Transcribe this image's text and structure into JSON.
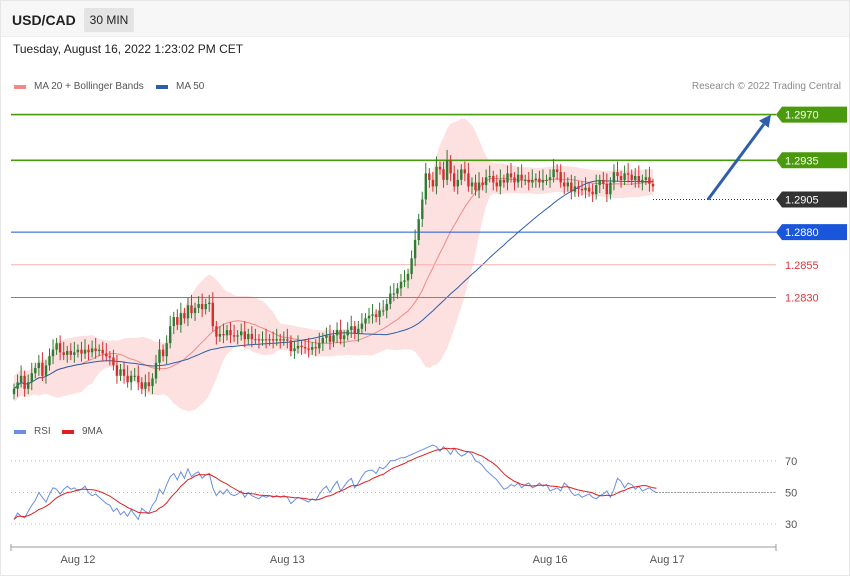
{
  "header": {
    "symbol": "USD/CAD",
    "timeframe": "30 MIN"
  },
  "datetime": "Tuesday, August 16, 2022 1:23:02 PM CET",
  "legend": {
    "ma20_bb": "MA 20 + Bollinger Bands",
    "ma50": "MA 50",
    "rsi": "RSI",
    "rsi_ma": "9MA",
    "credit": "Research © 2022 Trading Central"
  },
  "colors": {
    "resistance": "#4a9a0e",
    "pivot": "#1a56db",
    "support": "#e0393e",
    "current": "#333333",
    "bollinger_fill": "#fde0e0",
    "ma20": "#f08a8a",
    "ma50": "#2f5ea8",
    "candle_up": "#2e7d32",
    "candle_down": "#d32f2f",
    "rsi": "#6a8ee0",
    "rsi_ma": "#e02020",
    "arrow": "#2f5ea8"
  },
  "levels": [
    {
      "label": "1.2970",
      "value": 1.297,
      "kind": "resistance"
    },
    {
      "label": "1.2935",
      "value": 1.2935,
      "kind": "resistance"
    },
    {
      "label": "1.2905",
      "value": 1.2905,
      "kind": "current"
    },
    {
      "label": "1.2880",
      "value": 1.288,
      "kind": "pivot"
    },
    {
      "label": "1.2855",
      "value": 1.2855,
      "kind": "support"
    },
    {
      "label": "1.2830",
      "value": 1.283,
      "kind": "support"
    }
  ],
  "chart_data": [
    {
      "type": "candlestick",
      "title": "USD/CAD 30 MIN",
      "y_range": [
        1.274,
        1.2985
      ],
      "x_labels": [
        {
          "label": "Aug 12",
          "index": 18
        },
        {
          "label": "Aug 13",
          "index": 77
        },
        {
          "label": "Aug 16",
          "index": 151
        },
        {
          "label": "Aug 17",
          "index": 184
        }
      ],
      "closes": [
        1.276,
        1.2765,
        1.277,
        1.276,
        1.2765,
        1.2772,
        1.2776,
        1.278,
        1.277,
        1.2778,
        1.2785,
        1.279,
        1.2795,
        1.2788,
        1.2786,
        1.2789,
        1.2786,
        1.2788,
        1.279,
        1.2787,
        1.279,
        1.2788,
        1.2791,
        1.2789,
        1.279,
        1.2787,
        1.2785,
        1.2784,
        1.2778,
        1.277,
        1.2775,
        1.277,
        1.2765,
        1.277,
        1.277,
        1.2765,
        1.276,
        1.2765,
        1.2762,
        1.2768,
        1.278,
        1.279,
        1.2785,
        1.2795,
        1.2808,
        1.2815,
        1.2809,
        1.2818,
        1.2814,
        1.2824,
        1.2818,
        1.2822,
        1.2825,
        1.2821,
        1.2825,
        1.2826,
        1.2808,
        1.28,
        1.2802,
        1.2801,
        1.2805,
        1.2801,
        1.28,
        1.2801,
        1.2804,
        1.2798,
        1.2802,
        1.2798,
        1.2798,
        1.2797,
        1.2798,
        1.2797,
        1.2798,
        1.2797,
        1.2798,
        1.2797,
        1.2798,
        1.2797,
        1.2789,
        1.2791,
        1.2793,
        1.2792,
        1.2791,
        1.279,
        1.2792,
        1.2791,
        1.2795,
        1.2799,
        1.2801,
        1.2796,
        1.2801,
        1.2805,
        1.2798,
        1.2801,
        1.2805,
        1.2808,
        1.2802,
        1.2806,
        1.281,
        1.2814,
        1.2816,
        1.2817,
        1.2815,
        1.282,
        1.282,
        1.2825,
        1.2833,
        1.2833,
        1.2837,
        1.2842,
        1.2843,
        1.2848,
        1.286,
        1.2874,
        1.289,
        1.2905,
        1.2925,
        1.292,
        1.2915,
        1.293,
        1.2928,
        1.292,
        1.2935,
        1.2925,
        1.2915,
        1.292,
        1.2928,
        1.2925,
        1.2915,
        1.2918,
        1.2912,
        1.2918,
        1.2916,
        1.2922,
        1.2923,
        1.2918,
        1.2915,
        1.292,
        1.2918,
        1.2925,
        1.2922,
        1.2918,
        1.2924,
        1.292,
        1.292,
        1.2918,
        1.292,
        1.2921,
        1.2918,
        1.292,
        1.292,
        1.2922,
        1.2928,
        1.2926,
        1.2918,
        1.2915,
        1.2918,
        1.2911,
        1.2915,
        1.2913,
        1.2912,
        1.2914,
        1.2911,
        1.2909,
        1.2916,
        1.292,
        1.2917,
        1.2909,
        1.2918,
        1.2926,
        1.2923,
        1.292,
        1.2925,
        1.2924,
        1.292,
        1.2923,
        1.2918,
        1.292,
        1.2922,
        1.2917,
        1.2915
      ],
      "series": [
        {
          "name": "MA 20 + Bollinger Bands"
        },
        {
          "name": "MA 50"
        }
      ],
      "forecast_arrow": {
        "from": 1.2905,
        "to": 1.297
      }
    },
    {
      "type": "line",
      "title": "RSI",
      "y_range": [
        20,
        80
      ],
      "y_ticks": [
        70,
        50,
        30
      ],
      "series": [
        {
          "name": "RSI",
          "values": [
            33,
            37,
            35,
            34,
            38,
            42,
            45,
            50,
            47,
            44,
            49,
            53,
            52,
            49,
            52,
            54,
            52,
            53,
            51,
            52,
            54,
            50,
            48,
            49,
            47,
            45,
            43,
            42,
            38,
            40,
            36,
            38,
            35,
            39,
            36,
            33,
            40,
            38,
            37,
            42,
            45,
            52,
            49,
            55,
            60,
            62,
            58,
            63,
            59,
            65,
            60,
            62,
            63,
            59,
            61,
            62,
            53,
            48,
            51,
            49,
            52,
            49,
            48,
            49,
            51,
            47,
            50,
            48,
            47,
            46,
            48,
            47,
            48,
            47,
            48,
            47,
            48,
            47,
            43,
            45,
            47,
            46,
            45,
            44,
            46,
            45,
            49,
            52,
            54,
            50,
            54,
            57,
            51,
            54,
            57,
            59,
            53,
            56,
            60,
            63,
            64,
            64,
            62,
            66,
            65,
            67,
            70,
            70,
            71,
            72,
            72,
            73,
            74,
            75,
            76,
            77,
            78,
            79,
            80,
            79,
            76,
            79,
            77,
            74,
            78,
            75,
            73,
            74,
            76,
            74,
            70,
            69,
            67,
            64,
            62,
            60,
            58,
            55,
            52,
            53,
            55,
            54,
            56,
            53,
            55,
            56,
            53,
            54,
            56,
            54,
            55,
            51,
            52,
            53,
            51,
            56,
            54,
            50,
            48,
            49,
            47,
            48,
            49,
            47,
            46,
            48,
            49,
            51,
            47,
            52,
            59,
            57,
            53,
            56,
            55,
            52,
            54,
            51,
            52,
            53,
            51,
            50
          ]
        },
        {
          "name": "9MA"
        }
      ]
    }
  ]
}
